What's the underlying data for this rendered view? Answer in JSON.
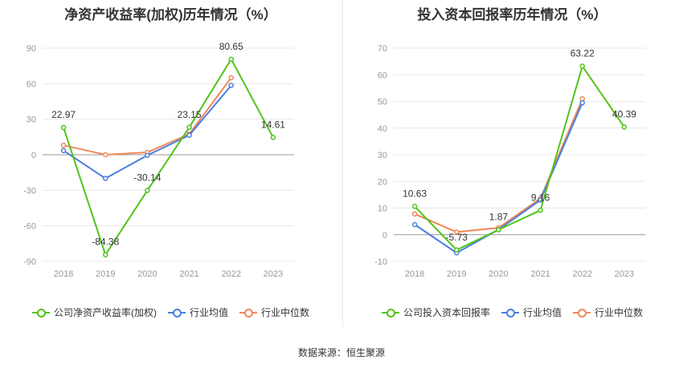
{
  "source": "数据来源：恒生聚源",
  "chart_data": [
    {
      "type": "line",
      "title": "净资产收益率(加权)历年情况（%）",
      "categories": [
        "2018",
        "2019",
        "2020",
        "2021",
        "2022",
        "2023"
      ],
      "y_ticks": [
        90,
        60,
        30,
        0,
        -30,
        -60,
        -90
      ],
      "ylim": [
        -90,
        90
      ],
      "grid": true,
      "legend_position": "bottom",
      "series": [
        {
          "name": "公司净资产收益率(加权)",
          "color": "#52c41a",
          "values": [
            22.97,
            -84.38,
            -30.14,
            23.15,
            80.65,
            14.61
          ],
          "labels": [
            "22.97",
            "-84.38",
            "-30.14",
            "23.15",
            "80.65",
            "14.61"
          ]
        },
        {
          "name": "行业均值",
          "color": "#4a7fe0",
          "values": [
            3.5,
            -20.0,
            -0.5,
            16.5,
            58.5,
            null
          ]
        },
        {
          "name": "行业中位数",
          "color": "#f0875a",
          "values": [
            8.0,
            0.0,
            2.0,
            17.5,
            65.0,
            null
          ]
        }
      ]
    },
    {
      "type": "line",
      "title": "投入资本回报率历年情况（%）",
      "categories": [
        "2018",
        "2019",
        "2020",
        "2021",
        "2022",
        "2023"
      ],
      "y_ticks": [
        70,
        60,
        50,
        40,
        30,
        20,
        10,
        0,
        -10
      ],
      "ylim": [
        -10,
        70
      ],
      "grid": true,
      "legend_position": "bottom",
      "series": [
        {
          "name": "公司投入资本回报率",
          "color": "#52c41a",
          "values": [
            10.63,
            -5.73,
            1.87,
            9.16,
            63.22,
            40.39
          ],
          "labels": [
            "10.63",
            "-5.73",
            "1.87",
            "9.16",
            "63.22",
            "40.39"
          ]
        },
        {
          "name": "行业均值",
          "color": "#4a7fe0",
          "values": [
            3.8,
            -6.8,
            1.9,
            13.0,
            49.5,
            null
          ]
        },
        {
          "name": "行业中位数",
          "color": "#f0875a",
          "values": [
            7.8,
            1.0,
            2.6,
            13.6,
            51.0,
            null
          ]
        }
      ]
    }
  ]
}
